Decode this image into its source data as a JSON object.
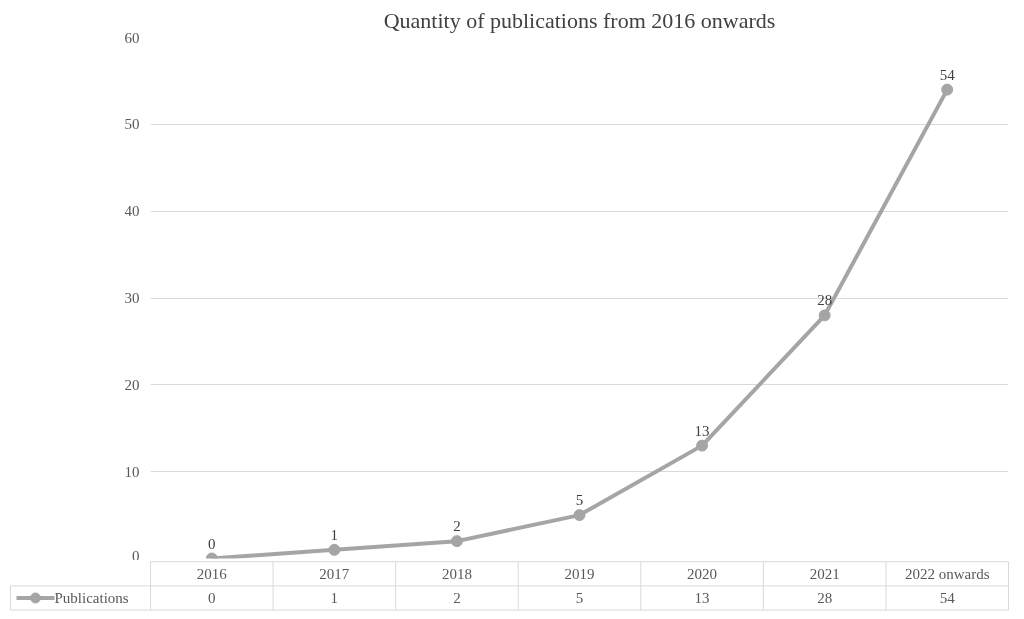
{
  "chart_data": {
    "type": "line",
    "title": "Quantity of publications from 2016 onwards",
    "categories": [
      "2016",
      "2017",
      "2018",
      "2019",
      "2020",
      "2021",
      "2022 onwards"
    ],
    "series": [
      {
        "name": "Publications",
        "color": "#a5a5a5",
        "values": [
          0,
          1,
          2,
          5,
          13,
          28,
          54
        ],
        "value_labels": [
          "0",
          "1",
          "2",
          "5",
          "13",
          "28",
          "54"
        ]
      }
    ],
    "ylim": [
      0,
      60
    ],
    "yticks": [
      0,
      10,
      20,
      30,
      40,
      50,
      60
    ],
    "annotations": [
      "0",
      "1",
      "2",
      "5",
      "13",
      "28",
      "54"
    ],
    "grid": "y",
    "legend": "bottom",
    "marker": "circle",
    "line_style": "solid"
  }
}
